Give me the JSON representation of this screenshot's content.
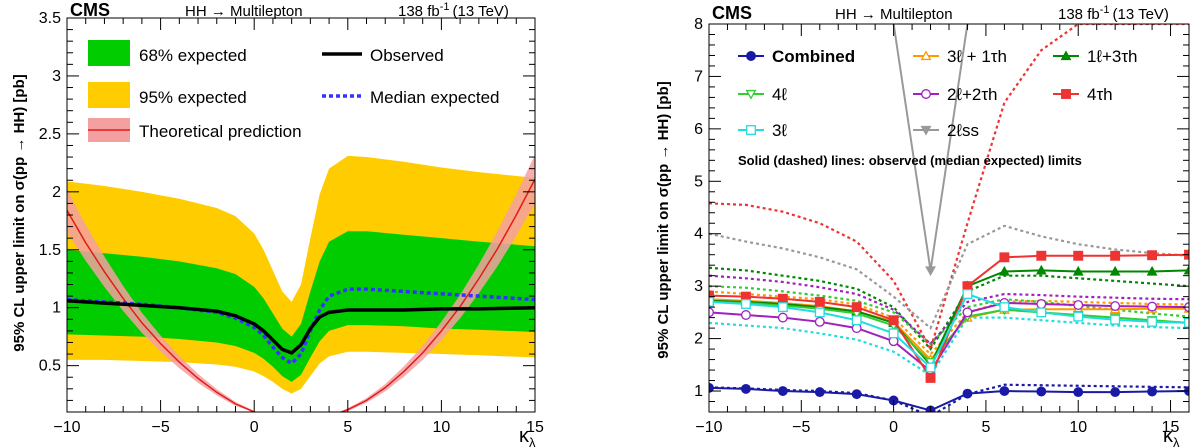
{
  "chart_data": [
    {
      "type": "line",
      "experiment": "CMS",
      "process": "HH → Multilepton",
      "lumi": "138 fb",
      "lumi_sup": "-1",
      "energy": "(13 TeV)",
      "ylabel": "95% CL upper limit on σ(pp → HH) [pb]",
      "xlabel": "κ",
      "xlabel_sub": "λ",
      "xlim": [
        -10,
        15
      ],
      "ylim": [
        0.1,
        3.5
      ],
      "x_ticks": [
        -10,
        -5,
        0,
        5,
        10,
        15
      ],
      "y_ticks": [
        0.5,
        1,
        1.5,
        2,
        2.5,
        3,
        3.5
      ],
      "y_tick_labels": [
        "0.5",
        "1",
        "1.5",
        "2",
        "2.5",
        "3",
        "3.5"
      ],
      "legend": [
        {
          "label": "68% expected",
          "key": "band68"
        },
        {
          "label": "95% expected",
          "key": "band95"
        },
        {
          "label": "Theoretical prediction",
          "key": "theory"
        },
        {
          "label": "Observed",
          "key": "observed"
        },
        {
          "label": "Median expected",
          "key": "expected"
        }
      ],
      "colors": {
        "band68": "#00cc00",
        "band95": "#ffcc00",
        "theory": "#e41a1c",
        "theory_band": "#f5a0a0",
        "observed": "#000000",
        "expected": "#3333ff"
      },
      "series": {
        "x": [
          -10,
          -8,
          -6,
          -4,
          -2,
          -1,
          0,
          0.5,
          1,
          1.5,
          2,
          2.5,
          3,
          3.5,
          4,
          5,
          6,
          8,
          10,
          12,
          15
        ],
        "observed": [
          1.06,
          1.04,
          1.02,
          1.0,
          0.97,
          0.93,
          0.86,
          0.8,
          0.72,
          0.64,
          0.61,
          0.68,
          0.82,
          0.92,
          0.96,
          0.98,
          0.98,
          0.98,
          0.99,
          0.99,
          1.0
        ],
        "expected": [
          1.07,
          1.05,
          1.03,
          1.0,
          0.96,
          0.91,
          0.83,
          0.76,
          0.66,
          0.57,
          0.52,
          0.6,
          0.8,
          0.98,
          1.1,
          1.16,
          1.16,
          1.14,
          1.12,
          1.1,
          1.07
        ],
        "band68_low": [
          0.77,
          0.76,
          0.75,
          0.73,
          0.7,
          0.67,
          0.61,
          0.56,
          0.49,
          0.41,
          0.36,
          0.42,
          0.57,
          0.71,
          0.8,
          0.85,
          0.85,
          0.84,
          0.82,
          0.81,
          0.79
        ],
        "band68_high": [
          1.5,
          1.47,
          1.44,
          1.4,
          1.34,
          1.29,
          1.18,
          1.08,
          0.95,
          0.82,
          0.75,
          0.86,
          1.14,
          1.4,
          1.57,
          1.66,
          1.66,
          1.63,
          1.6,
          1.57,
          1.53
        ],
        "band95_low": [
          0.55,
          0.55,
          0.54,
          0.53,
          0.51,
          0.49,
          0.45,
          0.41,
          0.36,
          0.3,
          0.26,
          0.3,
          0.41,
          0.52,
          0.58,
          0.62,
          0.62,
          0.61,
          0.6,
          0.59,
          0.57
        ],
        "band95_high": [
          2.09,
          2.05,
          2.0,
          1.94,
          1.86,
          1.79,
          1.64,
          1.5,
          1.32,
          1.14,
          1.05,
          1.2,
          1.6,
          1.98,
          2.2,
          2.31,
          2.3,
          2.26,
          2.21,
          2.17,
          2.12
        ]
      },
      "theory": {
        "x": [
          -10,
          -9,
          -8,
          -7,
          -6,
          -5,
          -4,
          -3,
          -2,
          -1,
          0,
          1,
          2,
          2.5,
          3,
          4,
          5,
          6,
          7,
          8,
          9,
          10,
          11,
          12,
          13,
          14,
          15
        ],
        "y": [
          1.84,
          1.56,
          1.31,
          1.08,
          0.87,
          0.69,
          0.53,
          0.39,
          0.27,
          0.17,
          0.1,
          0.05,
          0.02,
          0.02,
          0.03,
          0.06,
          0.12,
          0.2,
          0.31,
          0.45,
          0.61,
          0.8,
          1.01,
          1.25,
          1.51,
          1.8,
          2.11
        ],
        "rel_unc": 0.1
      }
    },
    {
      "type": "line",
      "experiment": "CMS",
      "process": "HH → Multilepton",
      "lumi": "138 fb",
      "lumi_sup": "-1",
      "energy": "(13 TeV)",
      "ylabel": "95% CL upper limit on σ(pp → HH) [pb]",
      "xlabel": "κ",
      "xlabel_sub": "λ",
      "annotation": "Solid (dashed) lines: observed (median expected) limits",
      "xlim": [
        -10,
        16
      ],
      "ylim": [
        0.6,
        8
      ],
      "x_ticks": [
        -10,
        -5,
        0,
        5,
        10,
        15
      ],
      "y_ticks": [
        1,
        2,
        3,
        4,
        5,
        6,
        7,
        8
      ],
      "series": [
        {
          "name": "Combined",
          "color": "#1a1aa6",
          "marker": "circle-filled",
          "x": [
            -10,
            -8,
            -6,
            -4,
            -2,
            0,
            2,
            4,
            6,
            8,
            10,
            12,
            14,
            16
          ],
          "observed": [
            1.06,
            1.04,
            1.0,
            0.98,
            0.94,
            0.82,
            0.63,
            0.95,
            1.0,
            0.99,
            0.98,
            0.98,
            0.99,
            1.0
          ],
          "expected": [
            1.07,
            1.05,
            1.02,
            1.0,
            0.96,
            0.82,
            0.52,
            0.94,
            1.12,
            1.11,
            1.1,
            1.09,
            1.08,
            1.07
          ]
        },
        {
          "name": "3ℓ + 1τh",
          "color": "#ff9900",
          "marker": "triangle-up-open",
          "x": [
            -10,
            -8,
            -6,
            -4,
            -2,
            0,
            2,
            4,
            6,
            8,
            10,
            12,
            14,
            16
          ],
          "observed": [
            2.75,
            2.72,
            2.68,
            2.62,
            2.52,
            2.32,
            1.6,
            2.4,
            2.55,
            2.56,
            2.56,
            2.56,
            2.57,
            2.57
          ],
          "expected": [
            2.9,
            2.85,
            2.8,
            2.75,
            2.65,
            2.4,
            1.7,
            2.5,
            2.7,
            2.72,
            2.7,
            2.68,
            2.66,
            2.65
          ]
        },
        {
          "name": "1ℓ+3τh",
          "color": "#008800",
          "marker": "triangle-up-filled",
          "x": [
            -10,
            -8,
            -6,
            -4,
            -2,
            0,
            2,
            4,
            6,
            8,
            10,
            12,
            14,
            16
          ],
          "observed": [
            2.72,
            2.7,
            2.66,
            2.6,
            2.52,
            2.3,
            1.5,
            3.0,
            3.28,
            3.3,
            3.28,
            3.28,
            3.28,
            3.3
          ],
          "expected": [
            3.35,
            3.3,
            3.2,
            3.1,
            2.95,
            2.6,
            1.8,
            2.9,
            3.2,
            3.2,
            3.15,
            3.1,
            3.05,
            3.0
          ]
        },
        {
          "name": "4ℓ",
          "color": "#33cc33",
          "marker": "triangle-down-open",
          "x": [
            -10,
            -8,
            -6,
            -4,
            -2,
            0,
            2,
            4,
            6,
            8,
            10,
            12,
            14,
            16
          ],
          "observed": [
            2.7,
            2.68,
            2.63,
            2.57,
            2.48,
            2.25,
            1.55,
            2.42,
            2.55,
            2.5,
            2.45,
            2.4,
            2.35,
            2.3
          ],
          "expected": [
            3.0,
            2.97,
            2.9,
            2.82,
            2.72,
            2.5,
            1.9,
            2.6,
            2.75,
            2.7,
            2.62,
            2.55,
            2.48,
            2.42
          ]
        },
        {
          "name": "2ℓ+2τh",
          "color": "#a020c0",
          "marker": "circle-open",
          "x": [
            -10,
            -8,
            -6,
            -4,
            -2,
            0,
            2,
            4,
            6,
            8,
            10,
            12,
            14,
            16
          ],
          "observed": [
            2.5,
            2.45,
            2.4,
            2.32,
            2.2,
            1.95,
            1.38,
            2.5,
            2.68,
            2.66,
            2.64,
            2.62,
            2.61,
            2.6
          ],
          "expected": [
            3.2,
            3.15,
            3.08,
            2.98,
            2.85,
            2.55,
            1.9,
            2.7,
            2.85,
            2.83,
            2.8,
            2.78,
            2.76,
            2.75
          ]
        },
        {
          "name": "4τh",
          "color": "#ee3333",
          "marker": "square-filled",
          "x": [
            -10,
            -8,
            -6,
            -4,
            -2,
            0,
            2,
            4,
            6,
            8,
            10,
            12,
            14,
            16
          ],
          "observed": [
            2.82,
            2.8,
            2.76,
            2.7,
            2.6,
            2.35,
            1.25,
            3.0,
            3.55,
            3.58,
            3.58,
            3.58,
            3.59,
            3.6
          ],
          "expected": [
            4.58,
            4.55,
            4.42,
            4.2,
            3.85,
            3.1,
            1.8,
            4.2,
            6.5,
            7.5,
            8.0,
            8.0,
            8.0,
            8.0
          ]
        },
        {
          "name": "3ℓ",
          "color": "#22dddd",
          "marker": "square-open",
          "x": [
            -10,
            -8,
            -6,
            -4,
            -2,
            0,
            2,
            4,
            6,
            8,
            10,
            12,
            14,
            16
          ],
          "observed": [
            2.7,
            2.66,
            2.6,
            2.5,
            2.35,
            2.1,
            1.45,
            2.85,
            2.6,
            2.5,
            2.42,
            2.36,
            2.32,
            2.3
          ],
          "expected": [
            2.3,
            2.25,
            2.2,
            2.1,
            1.98,
            1.75,
            1.3,
            2.4,
            2.4,
            2.35,
            2.3,
            2.25,
            2.22,
            2.2
          ]
        },
        {
          "name": "2ℓss",
          "color": "#999999",
          "marker": "triangle-down-filled",
          "x": [
            -10,
            -8,
            -6,
            -4,
            -2,
            0,
            2,
            4,
            6,
            8,
            10,
            12,
            14,
            16
          ],
          "observed": [
            null,
            null,
            null,
            null,
            null,
            8.0,
            3.3,
            8.0,
            null,
            null,
            null,
            null,
            null,
            null
          ],
          "expected": [
            4.0,
            3.85,
            3.72,
            3.55,
            3.32,
            2.8,
            2.2,
            3.8,
            4.15,
            3.95,
            3.8,
            3.7,
            3.63,
            3.58
          ]
        }
      ]
    }
  ]
}
